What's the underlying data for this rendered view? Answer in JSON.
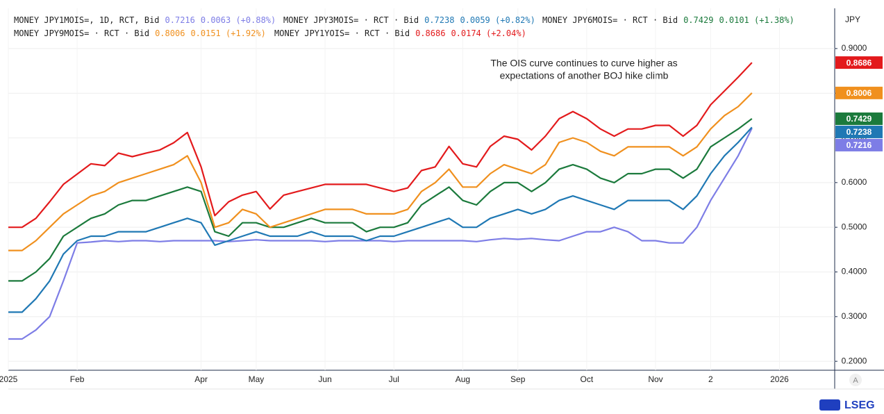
{
  "chart_data": {
    "type": "line",
    "annotation": [
      "The OIS curve continues to curve higher as",
      "expectations of another BOJ hike climb"
    ],
    "y_unit": "JPY",
    "scale_button": "A",
    "brand": "LSEG",
    "categories": [
      "2025",
      null,
      null,
      null,
      null,
      "Feb",
      null,
      null,
      null,
      null,
      null,
      null,
      null,
      null,
      "Apr",
      null,
      null,
      null,
      "May",
      null,
      null,
      null,
      null,
      "Jun",
      null,
      null,
      null,
      null,
      "Jul",
      null,
      null,
      null,
      null,
      "Aug",
      null,
      null,
      null,
      "Sep",
      null,
      null,
      null,
      null,
      "Oct",
      null,
      null,
      null,
      null,
      "Nov",
      null,
      null,
      null,
      "2",
      null,
      null,
      null,
      null,
      "2026"
    ],
    "ylim": [
      0.18,
      0.99
    ],
    "yticks": [
      {
        "value": 0.2,
        "label": "0.2000"
      },
      {
        "value": 0.3,
        "label": "0.3000"
      },
      {
        "value": 0.4,
        "label": "0.4000"
      },
      {
        "value": 0.5,
        "label": "0.5000"
      },
      {
        "value": 0.6,
        "label": "0.6000"
      },
      {
        "value": 0.7,
        "label": "0.7000"
      },
      {
        "value": 0.8,
        "label": "0.8000"
      },
      {
        "value": 0.9,
        "label": "0.9000"
      }
    ],
    "grid": true,
    "series": [
      {
        "name": "MONEY JPY1MOIS=, 1D, RCT, Bid",
        "change": "0.0063 (+0.88%)",
        "color": "#7d7de6",
        "values": [
          0.25,
          0.25,
          0.27,
          0.3,
          0.38,
          0.465,
          0.467,
          0.47,
          0.468,
          0.47,
          0.47,
          0.468,
          0.47,
          0.47,
          0.47,
          0.47,
          0.468,
          0.47,
          0.472,
          0.47,
          0.47,
          0.47,
          0.47,
          0.468,
          0.47,
          0.47,
          0.47,
          0.47,
          0.468,
          0.47,
          0.47,
          0.47,
          0.47,
          0.47,
          0.468,
          0.472,
          0.475,
          0.473,
          0.475,
          0.472,
          0.47,
          0.48,
          0.49,
          0.49,
          0.5,
          0.49,
          0.47,
          0.47,
          0.465,
          0.465,
          0.5,
          0.56,
          0.61,
          0.66,
          0.7216,
          null,
          null
        ]
      },
      {
        "name": "MONEY JPY3MOIS= · RCT · Bid",
        "change": "0.0059 (+0.82%)",
        "color": "#1f78b4",
        "values": [
          0.31,
          0.31,
          0.34,
          0.38,
          0.44,
          0.47,
          0.48,
          0.48,
          0.49,
          0.49,
          0.49,
          0.5,
          0.51,
          0.52,
          0.51,
          0.46,
          0.47,
          0.48,
          0.49,
          0.48,
          0.48,
          0.48,
          0.49,
          0.48,
          0.48,
          0.48,
          0.47,
          0.48,
          0.48,
          0.49,
          0.5,
          0.51,
          0.52,
          0.5,
          0.5,
          0.52,
          0.53,
          0.54,
          0.53,
          0.54,
          0.56,
          0.57,
          0.56,
          0.55,
          0.54,
          0.56,
          0.56,
          0.56,
          0.56,
          0.54,
          0.57,
          0.62,
          0.66,
          0.69,
          0.7238,
          null,
          null
        ]
      },
      {
        "name": "MONEY JPY6MOIS= · RCT · Bid",
        "change": "0.0101 (+1.38%)",
        "color": "#1b7a3c",
        "values": [
          0.38,
          0.38,
          0.4,
          0.43,
          0.48,
          0.5,
          0.52,
          0.53,
          0.55,
          0.56,
          0.56,
          0.57,
          0.58,
          0.59,
          0.58,
          0.49,
          0.48,
          0.51,
          0.51,
          0.5,
          0.5,
          0.51,
          0.52,
          0.51,
          0.51,
          0.51,
          0.49,
          0.5,
          0.5,
          0.51,
          0.55,
          0.57,
          0.59,
          0.56,
          0.55,
          0.58,
          0.6,
          0.6,
          0.58,
          0.6,
          0.63,
          0.64,
          0.63,
          0.61,
          0.6,
          0.62,
          0.62,
          0.63,
          0.63,
          0.61,
          0.63,
          0.68,
          0.7,
          0.72,
          0.7429,
          null,
          null
        ]
      },
      {
        "name": "MONEY JPY9MOIS= · RCT · Bid",
        "change": "0.0151 (+1.92%)",
        "color": "#f0901e",
        "values": [
          0.448,
          0.448,
          0.47,
          0.5,
          0.53,
          0.55,
          0.57,
          0.58,
          0.6,
          0.61,
          0.62,
          0.63,
          0.64,
          0.66,
          0.6,
          0.5,
          0.51,
          0.54,
          0.53,
          0.5,
          0.51,
          0.52,
          0.53,
          0.54,
          0.54,
          0.54,
          0.53,
          0.53,
          0.53,
          0.54,
          0.58,
          0.6,
          0.63,
          0.59,
          0.59,
          0.62,
          0.64,
          0.63,
          0.62,
          0.64,
          0.69,
          0.7,
          0.69,
          0.67,
          0.66,
          0.68,
          0.68,
          0.68,
          0.68,
          0.66,
          0.68,
          0.72,
          0.75,
          0.77,
          0.8006,
          null,
          null
        ]
      },
      {
        "name": "MONEY JPY1YOIS= · RCT · Bid",
        "change": "0.0174 (+2.04%)",
        "color": "#e31a1c",
        "values": [
          0.5,
          0.5,
          0.52,
          0.557,
          0.596,
          0.619,
          0.642,
          0.638,
          0.666,
          0.658,
          0.666,
          0.673,
          0.689,
          0.712,
          0.635,
          0.526,
          0.557,
          0.572,
          0.58,
          0.541,
          0.572,
          0.58,
          0.588,
          0.596,
          0.596,
          0.596,
          0.596,
          0.588,
          0.58,
          0.588,
          0.627,
          0.635,
          0.681,
          0.642,
          0.635,
          0.681,
          0.704,
          0.697,
          0.673,
          0.704,
          0.743,
          0.759,
          0.743,
          0.72,
          0.704,
          0.72,
          0.72,
          0.728,
          0.728,
          0.704,
          0.728,
          0.774,
          0.805,
          0.836,
          0.8686,
          null,
          null
        ]
      }
    ]
  }
}
